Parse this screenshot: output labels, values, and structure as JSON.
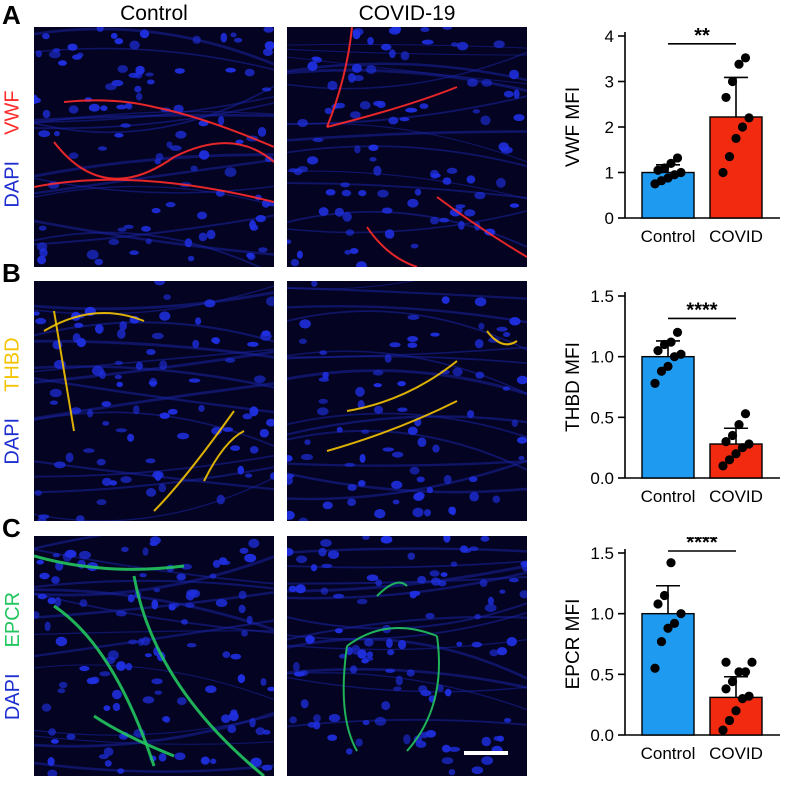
{
  "panels": [
    {
      "letter": "A",
      "marker": "VWF",
      "counterstain": "DAPI",
      "marker_color": "#ff2a2a",
      "counterstain_color": "#1f2fd0"
    },
    {
      "letter": "B",
      "marker": "THBD",
      "counterstain": "DAPI",
      "marker_color": "#f5c400",
      "counterstain_color": "#1f2fd0"
    },
    {
      "letter": "C",
      "marker": "EPCR",
      "counterstain": "DAPI",
      "marker_color": "#22c55e",
      "counterstain_color": "#1f2fd0"
    }
  ],
  "columns": {
    "left": "Control",
    "right": "COVID-19"
  },
  "colors": {
    "control_bar": "#1e9bf0",
    "covid_bar": "#f22b10",
    "nuclei": "#1f2fe0"
  },
  "chart_data": [
    {
      "type": "bar",
      "categories": [
        "Control",
        "COVID"
      ],
      "values": [
        1.0,
        2.22
      ],
      "errors": [
        0.17,
        0.87
      ],
      "points": [
        [
          0.75,
          0.82,
          0.88,
          0.95,
          1.0,
          1.05,
          1.1,
          1.2,
          1.32
        ],
        [
          1.0,
          1.35,
          1.75,
          2.0,
          2.2,
          2.65,
          3.0,
          3.38,
          3.52
        ]
      ],
      "significance": "**",
      "ylabel": "VWF MFI",
      "ylim": [
        0,
        4
      ],
      "yticks": [
        "0",
        "1",
        "2",
        "3",
        "4"
      ],
      "tick_values": [
        0,
        1,
        2,
        3,
        4
      ]
    },
    {
      "type": "bar",
      "categories": [
        "Control",
        "COVID"
      ],
      "values": [
        1.0,
        0.28
      ],
      "errors": [
        0.13,
        0.13
      ],
      "points": [
        [
          0.78,
          0.88,
          0.92,
          1.0,
          1.02,
          1.05,
          1.1,
          1.12,
          1.2
        ],
        [
          0.1,
          0.15,
          0.2,
          0.25,
          0.28,
          0.3,
          0.35,
          0.44,
          0.53
        ]
      ],
      "significance": "****",
      "ylabel": "THBD MFI",
      "ylim": [
        0,
        1.5
      ],
      "yticks": [
        "0.0",
        "0.5",
        "1.0",
        "1.5"
      ],
      "tick_values": [
        0,
        0.5,
        1.0,
        1.5
      ]
    },
    {
      "type": "bar",
      "categories": [
        "Control",
        "COVID"
      ],
      "values": [
        1.0,
        0.31
      ],
      "errors": [
        0.23,
        0.17
      ],
      "points": [
        [
          0.55,
          0.77,
          0.88,
          0.92,
          1.0,
          1.08,
          1.15,
          1.42
        ],
        [
          0.04,
          0.12,
          0.2,
          0.3,
          0.32,
          0.38,
          0.44,
          0.52,
          0.52,
          0.6,
          0.6
        ]
      ],
      "significance": "****",
      "ylabel": "EPCR MFI",
      "ylim": [
        0,
        1.5
      ],
      "yticks": [
        "0.0",
        "0.5",
        "1.0",
        "1.5"
      ],
      "tick_values": [
        0,
        0.5,
        1.0,
        1.5
      ]
    }
  ]
}
